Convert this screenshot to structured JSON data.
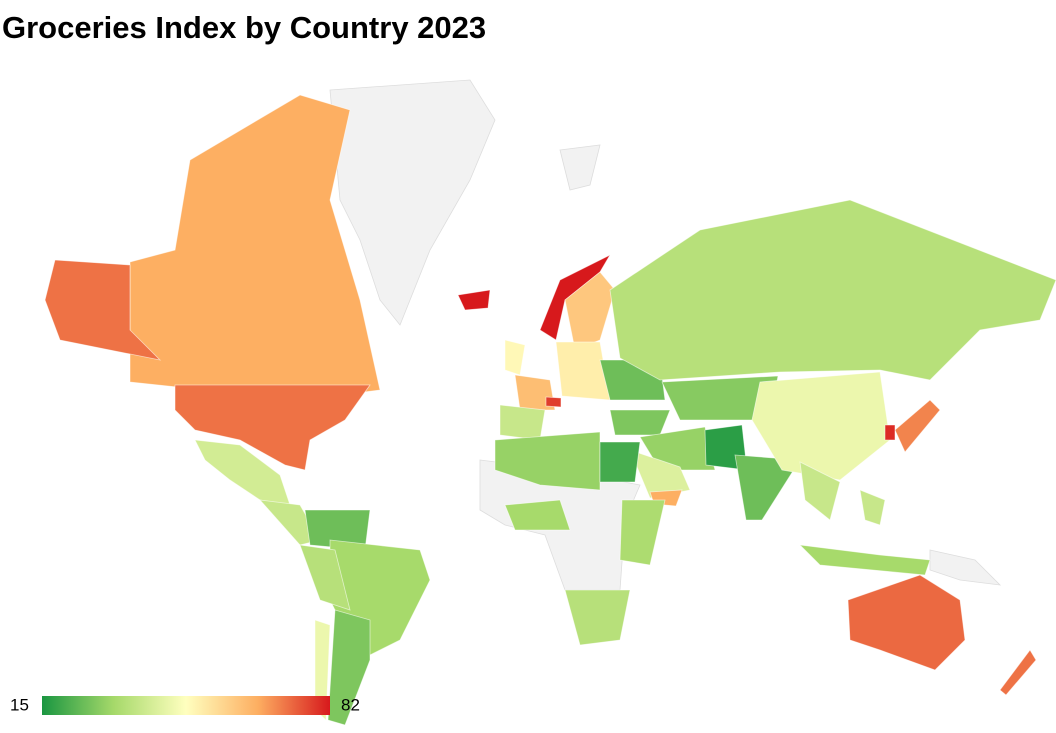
{
  "chart_data": {
    "type": "choropleth",
    "title": "Groceries Index by Country 2023",
    "values": [
      65,
      72,
      72,
      40,
      38,
      25,
      32,
      35,
      27,
      45,
      82,
      82,
      60,
      50,
      62,
      52,
      78,
      38,
      25,
      35,
      28,
      27,
      30,
      42,
      65,
      17,
      25,
      45,
      38,
      70,
      80,
      32,
      38,
      73,
      72,
      30,
      20,
      32,
      33,
      35
    ],
    "range": [
      15,
      82
    ],
    "colorscale": [
      "#1a9641",
      "#a6d96a",
      "#ffffbf",
      "#fdae61",
      "#d7191c"
    ],
    "no_data_color": "#f2f2f2"
  }
}
